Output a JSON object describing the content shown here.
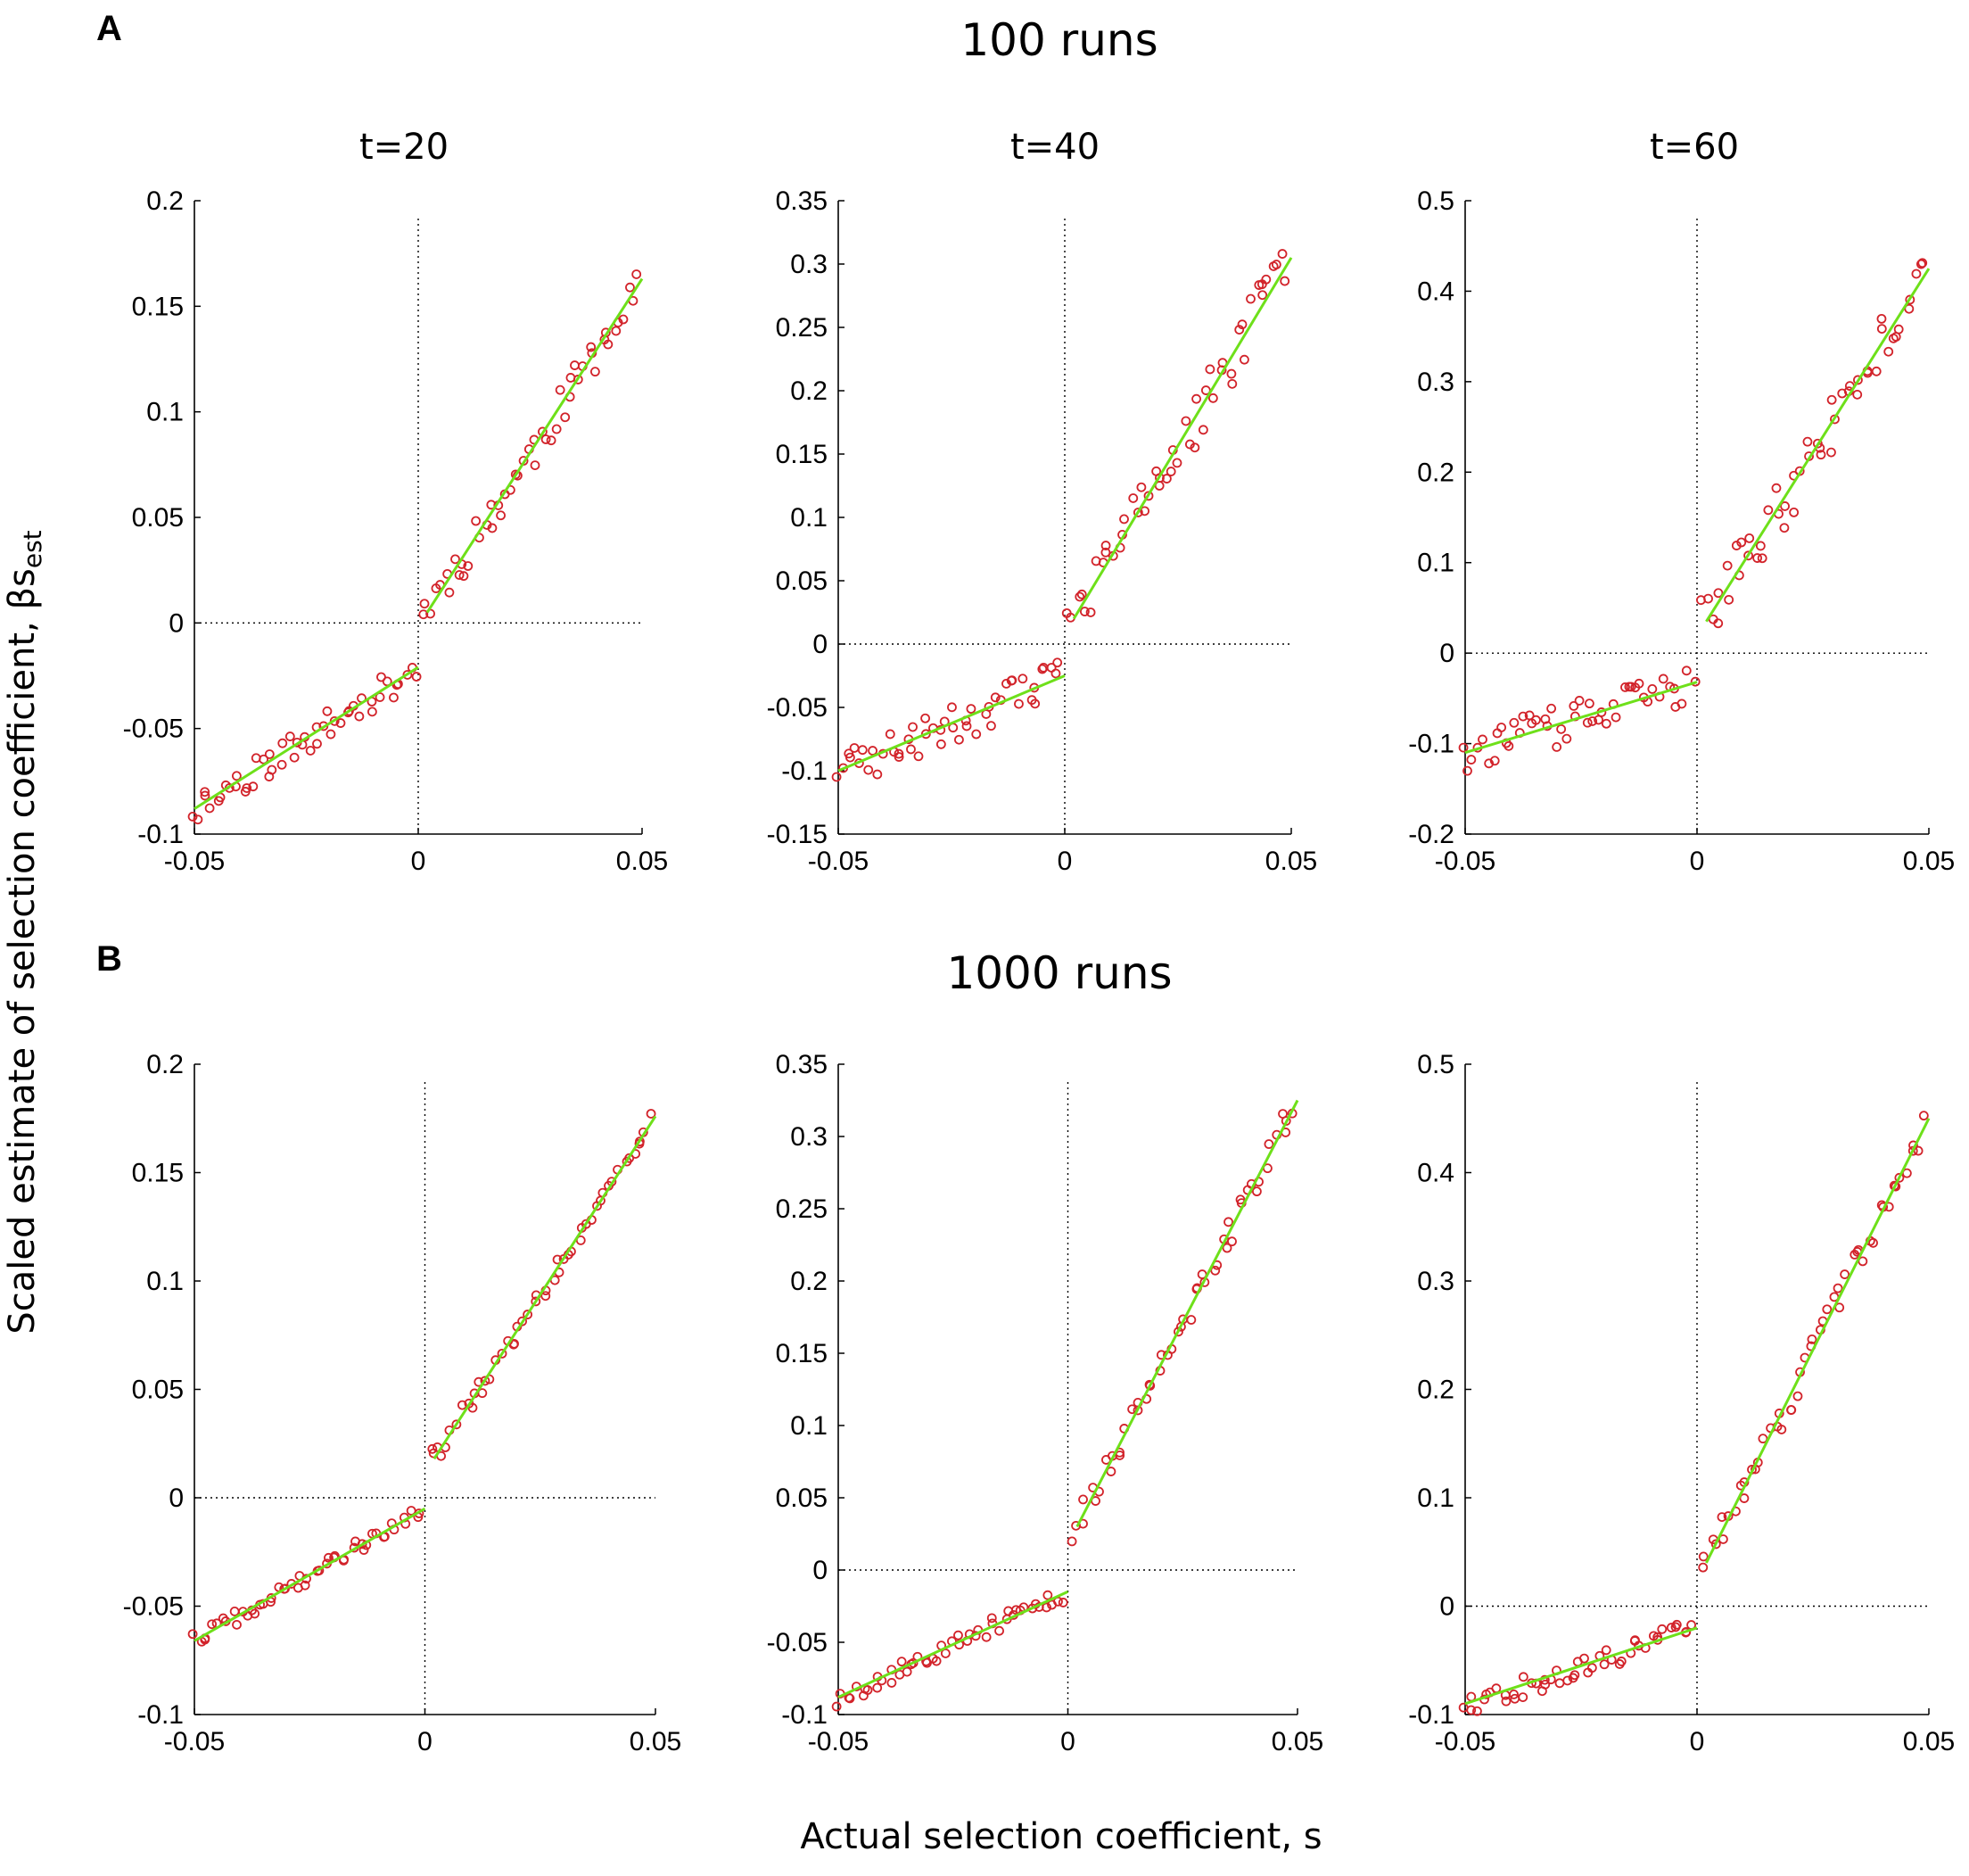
{
  "figure": {
    "panel_a_letter": "A",
    "panel_b_letter": "B",
    "row_a_title": "100 runs",
    "row_b_title": "1000 runs",
    "col_titles": [
      "t=20",
      "t=40",
      "t=60"
    ],
    "ylabel_main": "Scaled estimate of selection coefficient, βs",
    "ylabel_sub": "est",
    "xlabel": "Actual selection coefficient, s"
  },
  "colors": {
    "points": "#d2232a",
    "fit": "#6ee01a",
    "axes": "#000000"
  },
  "chart_data": [
    {
      "type": "scatter",
      "row": "100 runs",
      "title": "t=20",
      "xlim": [
        -0.05,
        0.05
      ],
      "ylim": [
        -0.1,
        0.2
      ],
      "xticks": [
        "-0.05",
        "0",
        "0.05"
      ],
      "yticks": [
        "-0.1",
        "-0.05",
        "0",
        "0.05",
        "0.1",
        "0.15",
        "0.2"
      ],
      "fit_neg": [
        [
          -0.05,
          -0.088
        ],
        [
          0,
          -0.021
        ]
      ],
      "fit_pos": [
        [
          0.002,
          0.005
        ],
        [
          0.05,
          0.163
        ]
      ],
      "spread": 0.008,
      "seed": 11
    },
    {
      "type": "scatter",
      "row": "100 runs",
      "title": "t=40",
      "xlim": [
        -0.05,
        0.05
      ],
      "ylim": [
        -0.15,
        0.35
      ],
      "xticks": [
        "-0.05",
        "0",
        "0.05"
      ],
      "yticks": [
        "-0.15",
        "-0.1",
        "-0.05",
        "0",
        "0.05",
        "0.1",
        "0.15",
        "0.2",
        "0.25",
        "0.3",
        "0.35"
      ],
      "fit_neg": [
        [
          -0.05,
          -0.1
        ],
        [
          0,
          -0.025
        ]
      ],
      "fit_pos": [
        [
          0.002,
          0.02
        ],
        [
          0.05,
          0.305
        ]
      ],
      "spread": 0.018,
      "seed": 23
    },
    {
      "type": "scatter",
      "row": "100 runs",
      "title": "t=60",
      "xlim": [
        -0.05,
        0.05
      ],
      "ylim": [
        -0.2,
        0.5
      ],
      "xticks": [
        "-0.05",
        "0",
        "0.05"
      ],
      "yticks": [
        "-0.2",
        "-0.1",
        "0",
        "0.1",
        "0.2",
        "0.3",
        "0.4",
        "0.5"
      ],
      "fit_neg": [
        [
          -0.05,
          -0.11
        ],
        [
          0,
          -0.032
        ]
      ],
      "fit_pos": [
        [
          0.002,
          0.035
        ],
        [
          0.05,
          0.425
        ]
      ],
      "spread": 0.025,
      "seed": 37
    },
    {
      "type": "scatter",
      "row": "1000 runs",
      "title": "t=20",
      "xlim": [
        -0.05,
        0.05
      ],
      "ylim": [
        -0.1,
        0.2
      ],
      "xticks": [
        "-0.05",
        "0",
        "0.05"
      ],
      "yticks": [
        "-0.1",
        "-0.05",
        "0",
        "0.05",
        "0.1",
        "0.15",
        "0.2"
      ],
      "fit_neg": [
        [
          -0.05,
          -0.066
        ],
        [
          0,
          -0.005
        ]
      ],
      "fit_pos": [
        [
          0.002,
          0.018
        ],
        [
          0.05,
          0.176
        ]
      ],
      "spread": 0.004,
      "seed": 41
    },
    {
      "type": "scatter",
      "row": "1000 runs",
      "title": "t=40",
      "xlim": [
        -0.05,
        0.05
      ],
      "ylim": [
        -0.1,
        0.35
      ],
      "xticks": [
        "-0.05",
        "0",
        "0.05"
      ],
      "yticks": [
        "-0.1",
        "-0.05",
        "0",
        "0.05",
        "0.1",
        "0.15",
        "0.2",
        "0.25",
        "0.3",
        "0.35"
      ],
      "fit_neg": [
        [
          -0.05,
          -0.088
        ],
        [
          0,
          -0.015
        ]
      ],
      "fit_pos": [
        [
          0.002,
          0.03
        ],
        [
          0.05,
          0.325
        ]
      ],
      "spread": 0.008,
      "seed": 53
    },
    {
      "type": "scatter",
      "row": "1000 runs",
      "title": "t=60",
      "xlim": [
        -0.05,
        0.05
      ],
      "ylim": [
        -0.1,
        0.5
      ],
      "xticks": [
        "-0.05",
        "0",
        "0.05"
      ],
      "yticks": [
        "-0.1",
        "0",
        "0.1",
        "0.2",
        "0.3",
        "0.4",
        "0.5"
      ],
      "fit_neg": [
        [
          -0.05,
          -0.09
        ],
        [
          0,
          -0.02
        ]
      ],
      "fit_pos": [
        [
          0.002,
          0.04
        ],
        [
          0.05,
          0.45
        ]
      ],
      "spread": 0.012,
      "seed": 67
    }
  ]
}
